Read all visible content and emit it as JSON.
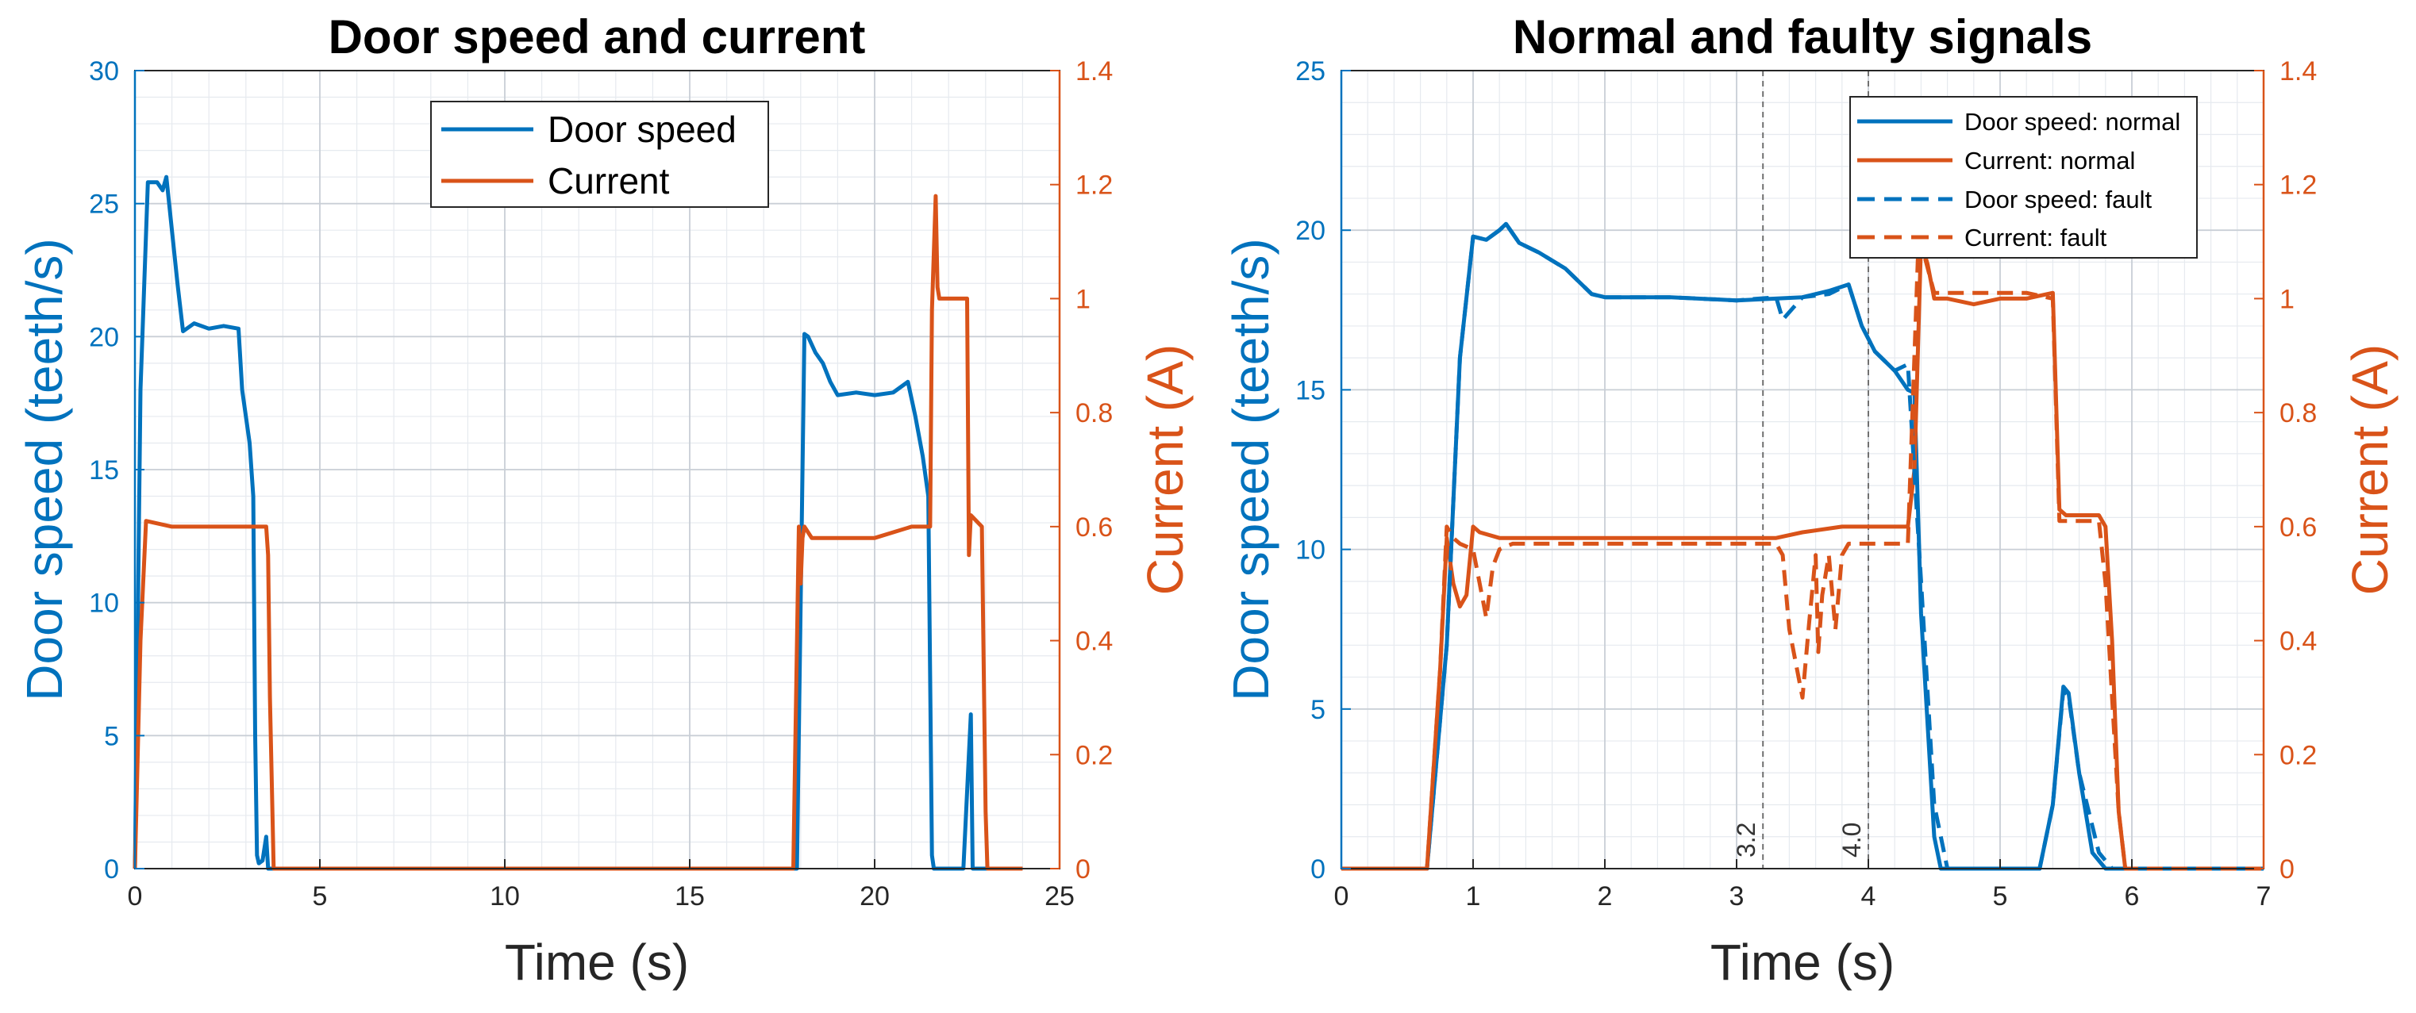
{
  "colors": {
    "blue": "#0072BD",
    "orange": "#D95319",
    "grid_major": "#c9cfd6",
    "grid_minor": "#e6eaef"
  },
  "chart_data": [
    {
      "type": "line",
      "title": "Door speed and current",
      "xlabel": "Time (s)",
      "ylabel_left": "Door speed (teeth/s)",
      "ylabel_right": "Current (A)",
      "xlim": [
        0,
        25
      ],
      "ylim_left": [
        0,
        30
      ],
      "ylim_right": [
        0,
        1.4
      ],
      "xticks": [
        "0",
        "5",
        "10",
        "15",
        "20",
        "25"
      ],
      "yticks_left": [
        "0",
        "5",
        "10",
        "15",
        "20",
        "25",
        "30"
      ],
      "yticks_right": [
        "0",
        "0.2",
        "0.4",
        "0.6",
        "0.8",
        "1",
        "1.2",
        "1.4"
      ],
      "legend": [
        "Door speed",
        "Current"
      ],
      "series": [
        {
          "name": "Door speed",
          "axis": "left",
          "style": "solid",
          "x": [
            0,
            0.15,
            0.35,
            0.6,
            0.75,
            0.85,
            1.0,
            1.15,
            1.3,
            1.6,
            2.0,
            2.4,
            2.8,
            2.9,
            3.1,
            3.2,
            3.25,
            3.3,
            3.35,
            3.45,
            3.55,
            3.6,
            3.7,
            17.9,
            18.1,
            18.2,
            18.4,
            18.6,
            18.8,
            19.0,
            19.5,
            20.0,
            20.5,
            20.9,
            21.1,
            21.3,
            21.45,
            21.55,
            21.6,
            21.9,
            22.4,
            22.6,
            22.65,
            22.7,
            22.9,
            24.0
          ],
          "y": [
            0,
            18,
            25.8,
            25.8,
            25.5,
            26,
            24,
            22,
            20.2,
            20.5,
            20.3,
            20.4,
            20.3,
            18,
            16,
            14,
            5,
            0.5,
            0.2,
            0.3,
            1.2,
            0,
            0,
            0,
            20.1,
            20,
            19.4,
            19,
            18.3,
            17.8,
            17.9,
            17.8,
            17.9,
            18.3,
            17,
            15.5,
            14,
            0.5,
            0,
            0,
            0,
            5.8,
            0,
            0,
            0,
            0
          ]
        },
        {
          "name": "Current",
          "axis": "right",
          "style": "solid",
          "x": [
            0,
            0.15,
            0.3,
            1.0,
            2.0,
            3.0,
            3.4,
            3.55,
            3.6,
            3.65,
            3.75,
            3.9,
            17.8,
            17.95,
            18.0,
            18.05,
            18.1,
            18.3,
            19.0,
            20.0,
            21.0,
            21.5,
            21.55,
            21.65,
            21.7,
            21.75,
            22.4,
            22.5,
            22.55,
            22.6,
            22.9,
            23.0,
            23.05,
            24.0
          ],
          "y": [
            0,
            0.4,
            0.61,
            0.6,
            0.6,
            0.6,
            0.6,
            0.6,
            0.55,
            0.3,
            0,
            0,
            0,
            0.6,
            0.5,
            0.58,
            0.6,
            0.58,
            0.58,
            0.58,
            0.6,
            0.6,
            0.98,
            1.18,
            1.02,
            1.0,
            1.0,
            1.0,
            0.55,
            0.62,
            0.6,
            0.1,
            0,
            0
          ]
        }
      ]
    },
    {
      "type": "line",
      "title": "Normal and faulty signals",
      "xlabel": "Time (s)",
      "ylabel_left": "Door speed (teeth/s)",
      "ylabel_right": "Current (A)",
      "xlim": [
        0,
        7
      ],
      "ylim_left": [
        0,
        25
      ],
      "ylim_right": [
        0,
        1.4
      ],
      "xticks": [
        "0",
        "1",
        "2",
        "3",
        "4",
        "5",
        "6",
        "7"
      ],
      "yticks_left": [
        "0",
        "5",
        "10",
        "15",
        "20",
        "25"
      ],
      "yticks_right": [
        "0",
        "0.2",
        "0.4",
        "0.6",
        "0.8",
        "1",
        "1.2",
        "1.4"
      ],
      "legend": [
        "Door speed: normal",
        "Current: normal",
        "Door speed: fault",
        "Current: fault"
      ],
      "annotations": [
        {
          "x": 3.2,
          "label": "3.2"
        },
        {
          "x": 4.0,
          "label": "4.0"
        }
      ],
      "series": [
        {
          "name": "Door speed: normal",
          "axis": "left",
          "style": "solid",
          "x": [
            0,
            0.65,
            0.8,
            0.9,
            1.0,
            1.1,
            1.2,
            1.25,
            1.35,
            1.5,
            1.7,
            1.9,
            2.0,
            2.5,
            3.0,
            3.5,
            3.7,
            3.85,
            3.95,
            4.05,
            4.2,
            4.3,
            4.35,
            4.4,
            4.5,
            4.55,
            5.3,
            5.4,
            5.48,
            5.52,
            5.6,
            5.7,
            5.8,
            7.0
          ],
          "y": [
            0,
            0,
            7,
            16,
            19.8,
            19.7,
            20.0,
            20.2,
            19.6,
            19.3,
            18.8,
            18.0,
            17.9,
            17.9,
            17.8,
            17.9,
            18.1,
            18.3,
            17.0,
            16.2,
            15.6,
            15.0,
            14.9,
            8,
            1,
            0,
            0,
            2,
            5.7,
            5.5,
            3,
            0.5,
            0,
            0
          ]
        },
        {
          "name": "Current: normal",
          "axis": "right",
          "style": "solid",
          "x": [
            0,
            0.65,
            0.75,
            0.8,
            0.85,
            0.9,
            0.95,
            1.0,
            1.05,
            1.2,
            1.5,
            2.0,
            2.5,
            3.0,
            3.3,
            3.5,
            3.8,
            4.0,
            4.2,
            4.3,
            4.35,
            4.4,
            4.45,
            4.5,
            4.55,
            4.6,
            4.8,
            5.0,
            5.2,
            5.4,
            5.45,
            5.5,
            5.75,
            5.8,
            5.85,
            5.9,
            5.95,
            7.0
          ],
          "y": [
            0,
            0,
            0.35,
            0.58,
            0.5,
            0.46,
            0.48,
            0.6,
            0.59,
            0.58,
            0.58,
            0.58,
            0.58,
            0.58,
            0.58,
            0.59,
            0.6,
            0.6,
            0.6,
            0.6,
            0.7,
            1.1,
            1.06,
            1.0,
            1.0,
            1.0,
            0.99,
            1.0,
            1.0,
            1.01,
            0.63,
            0.62,
            0.62,
            0.6,
            0.4,
            0.1,
            0,
            0
          ]
        },
        {
          "name": "Door speed: fault",
          "axis": "left",
          "style": "dashed",
          "x": [
            0,
            0.65,
            0.8,
            0.9,
            1.0,
            1.1,
            1.2,
            1.25,
            1.35,
            1.5,
            1.7,
            1.9,
            2.0,
            2.5,
            3.0,
            3.3,
            3.35,
            3.5,
            3.7,
            3.85,
            3.95,
            4.05,
            4.2,
            4.3,
            4.4,
            4.5,
            4.6,
            5.3,
            5.4,
            5.48,
            5.52,
            5.6,
            5.75,
            5.85,
            7.0
          ],
          "y": [
            0,
            0,
            7,
            16,
            19.8,
            19.7,
            20.0,
            20.2,
            19.6,
            19.3,
            18.8,
            18.0,
            17.9,
            17.9,
            17.8,
            17.9,
            17.2,
            17.9,
            18.0,
            18.3,
            17.0,
            16.2,
            15.6,
            15.8,
            9,
            2,
            0,
            0,
            2,
            5.6,
            5.4,
            3,
            0.5,
            0,
            0
          ]
        },
        {
          "name": "Current: fault",
          "axis": "right",
          "style": "dashed",
          "x": [
            0,
            0.65,
            0.75,
            0.8,
            0.85,
            0.9,
            1.0,
            1.05,
            1.1,
            1.15,
            1.2,
            1.3,
            1.5,
            2.0,
            2.5,
            3.0,
            3.3,
            3.35,
            3.4,
            3.45,
            3.5,
            3.55,
            3.6,
            3.62,
            3.65,
            3.7,
            3.75,
            3.8,
            3.85,
            3.9,
            4.0,
            4.2,
            4.3,
            4.38,
            4.42,
            4.5,
            4.6,
            4.8,
            5.0,
            5.2,
            5.4,
            5.45,
            5.5,
            5.75,
            5.8,
            5.85,
            5.9,
            5.95,
            7.0
          ],
          "y": [
            0,
            0,
            0.35,
            0.6,
            0.58,
            0.57,
            0.56,
            0.5,
            0.44,
            0.53,
            0.56,
            0.57,
            0.57,
            0.57,
            0.57,
            0.57,
            0.57,
            0.55,
            0.42,
            0.36,
            0.3,
            0.43,
            0.55,
            0.38,
            0.48,
            0.55,
            0.42,
            0.55,
            0.57,
            0.57,
            0.57,
            0.57,
            0.57,
            1.1,
            1.08,
            1.01,
            1.01,
            1.01,
            1.01,
            1.01,
            1.0,
            0.61,
            0.61,
            0.61,
            0.5,
            0.3,
            0.1,
            0,
            0
          ]
        }
      ]
    }
  ]
}
